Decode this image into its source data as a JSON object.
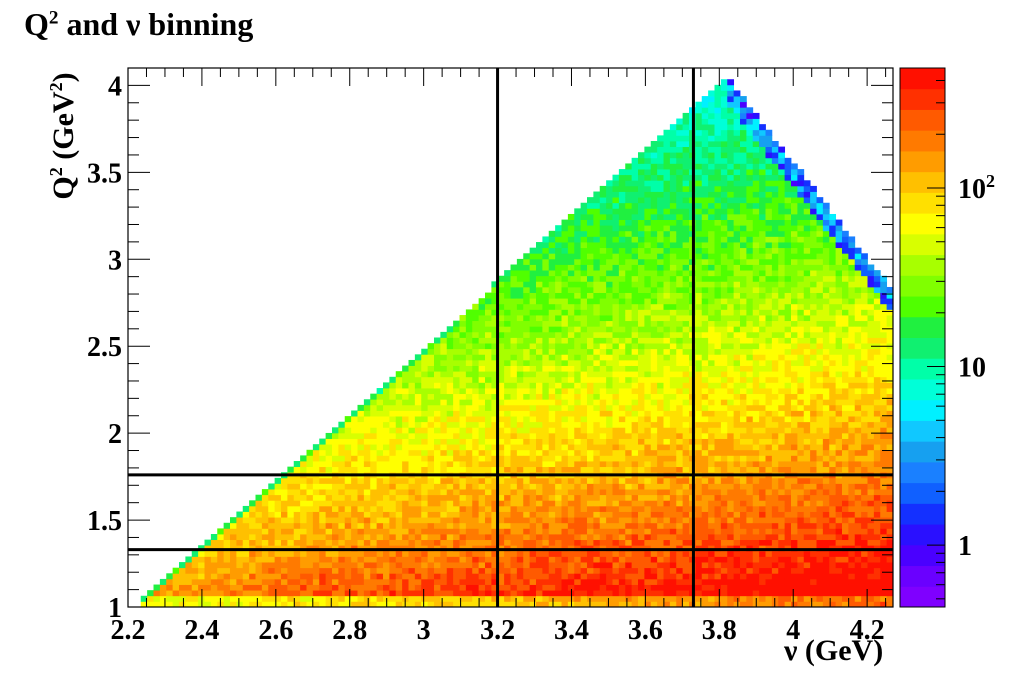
{
  "title": {
    "main": "Q",
    "sup": "2",
    "rest": " and  ν binning"
  },
  "axes": {
    "ylabel": {
      "main": "Q",
      "sup": "2",
      "rest": " (GeV",
      "sup2": "2",
      "end": ")"
    },
    "xlabel": "ν (GeV)"
  },
  "chart_data": {
    "type": "heatmap",
    "title": "Q^2 and  ν binning",
    "xlabel": "ν (GeV)",
    "ylabel": "Q^2 (GeV^2)",
    "xlim": [
      2.2,
      4.27
    ],
    "ylim": [
      1.0,
      4.1
    ],
    "x_ticks": [
      "2.2",
      "2.4",
      "2.6",
      "2.8",
      "3",
      "3.2",
      "3.4",
      "3.6",
      "3.8",
      "4",
      "4.2"
    ],
    "y_ticks": [
      "1",
      "1.5",
      "2",
      "2.5",
      "3",
      "3.5",
      "4"
    ],
    "colorbar": {
      "scale": "log",
      "range": [
        0.45,
        470
      ],
      "tick_labels": [
        "1",
        "10",
        "10^2"
      ],
      "palette": [
        "#7f00ff",
        "#6a00ff",
        "#4a00ff",
        "#2a10ff",
        "#1430ff",
        "#1060ff",
        "#1a80ff",
        "#16a0f0",
        "#10c8ff",
        "#00f0ff",
        "#00ffd8",
        "#00ffa8",
        "#10f070",
        "#20f040",
        "#50ff00",
        "#80ff00",
        "#a8ff00",
        "#d8ff00",
        "#ffff00",
        "#ffe000",
        "#ffc000",
        "#ff9c00",
        "#ff7a00",
        "#ff5a00",
        "#ff3000",
        "#ff1000"
      ]
    },
    "region": {
      "description_points": [
        [
          2.23,
          1.03
        ],
        [
          3.82,
          4.05
        ],
        [
          4.27,
          2.82
        ],
        [
          4.27,
          1.0
        ]
      ],
      "upper_edge": {
        "x": [
          2.23,
          3.82
        ],
        "y": [
          1.03,
          4.05
        ]
      },
      "right_edge": {
        "x": [
          3.82,
          4.27
        ],
        "y": [
          4.05,
          2.82
        ]
      }
    },
    "bin_lines": {
      "nu": [
        3.2,
        3.73
      ],
      "q2": [
        1.33,
        1.76
      ]
    }
  }
}
